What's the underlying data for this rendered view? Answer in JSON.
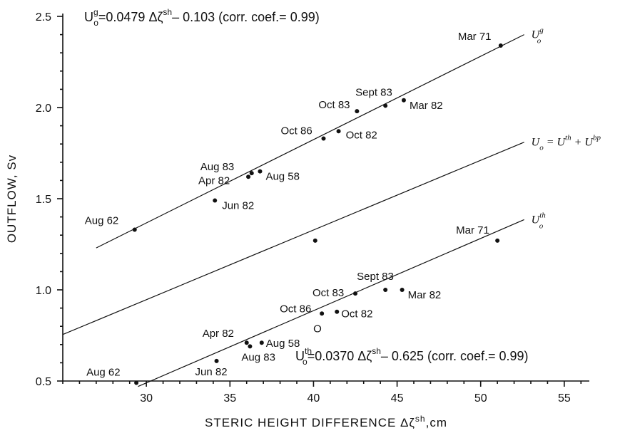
{
  "chart_data": {
    "type": "scatter",
    "xlabel": "STERIC HEIGHT DIFFERENCE Δζsh,cm",
    "ylabel": "OUTFLOW, Sv",
    "xlim": [
      25.0,
      56.5
    ],
    "ylim": [
      0.5,
      2.5
    ],
    "xticks": [
      30,
      35,
      40,
      45,
      50,
      55
    ],
    "yticks": [
      0.5,
      1.0,
      1.5,
      2.0,
      2.5
    ],
    "x_tick_labels": [
      "30",
      "35",
      "40",
      "45",
      "50",
      "55"
    ],
    "y_tick_labels": [
      "0.5",
      "1.0",
      "1.5",
      "2.0",
      "2.5"
    ],
    "grid": false,
    "annotations": {
      "eq_top": {
        "prefix": "U",
        "sup": "g",
        "sub": "o",
        "body": "=0.0479 Δζ",
        "sup2": "sh",
        "tail": "– 0.103  (corr. coef.= 0.99)"
      },
      "eq_bottom": {
        "prefix": "U",
        "sup": "th",
        "sub": "o",
        "body": "=0.0370 Δζ",
        "sup2": "sh",
        "tail": "– 0.625 (corr. coef.= 0.99)"
      },
      "origin_marker": "O"
    },
    "lines": [
      {
        "name": "Ug",
        "label_main": "U",
        "label_sup": "g",
        "label_sub": "o",
        "x": [
          27.0,
          52.6
        ],
        "y": [
          1.23,
          2.4
        ]
      },
      {
        "name": "Uo = Uth + Ubp",
        "label_main": "U",
        "label_sub": "o",
        "label_rest": " = U",
        "label_sup2": "th",
        "label_rest2": " + U",
        "label_sup3": "bp",
        "x": [
          25.0,
          52.6
        ],
        "y": [
          0.755,
          1.81
        ]
      },
      {
        "name": "Uth",
        "label_main": "U",
        "label_sup": "th",
        "label_sub": "o",
        "x": [
          29.5,
          52.6
        ],
        "y": [
          0.47,
          1.385
        ]
      }
    ],
    "series": [
      {
        "name": "Ug",
        "points": [
          {
            "label": "Aug 62",
            "x": 29.3,
            "y": 1.33
          },
          {
            "label": "Jun 82",
            "x": 34.1,
            "y": 1.49
          },
          {
            "label": "Apr 82",
            "x": 36.1,
            "y": 1.62
          },
          {
            "label": "Aug 83",
            "x": 36.3,
            "y": 1.64
          },
          {
            "label": "Aug 58",
            "x": 36.8,
            "y": 1.65
          },
          {
            "label": "Oct 86",
            "x": 40.6,
            "y": 1.83
          },
          {
            "label": "Oct 82",
            "x": 41.5,
            "y": 1.87
          },
          {
            "label": "Oct 83",
            "x": 42.6,
            "y": 1.98
          },
          {
            "label": "Sept 83",
            "x": 44.3,
            "y": 2.01
          },
          {
            "label": "Mar 82",
            "x": 45.4,
            "y": 2.04
          },
          {
            "label": "Mar 71",
            "x": 51.2,
            "y": 2.34
          }
        ]
      },
      {
        "name": "Uo",
        "points": [
          {
            "label": "",
            "x": 40.1,
            "y": 1.27
          }
        ]
      },
      {
        "name": "Uth",
        "points": [
          {
            "label": "Aug 62",
            "x": 29.4,
            "y": 0.49
          },
          {
            "label": "Jun 82",
            "x": 34.2,
            "y": 0.61
          },
          {
            "label": "Apr 82",
            "x": 36.0,
            "y": 0.71
          },
          {
            "label": "Aug 83",
            "x": 36.2,
            "y": 0.69
          },
          {
            "label": "Aug 58",
            "x": 36.9,
            "y": 0.71
          },
          {
            "label": "Oct 86",
            "x": 40.5,
            "y": 0.87
          },
          {
            "label": "Oct 82",
            "x": 41.4,
            "y": 0.88
          },
          {
            "label": "Oct 83",
            "x": 42.5,
            "y": 0.98
          },
          {
            "label": "Sept 83",
            "x": 44.3,
            "y": 1.0
          },
          {
            "label": "Mar 82",
            "x": 45.3,
            "y": 1.0
          },
          {
            "label": "Mar 71",
            "x": 51.0,
            "y": 1.27
          }
        ]
      }
    ]
  }
}
